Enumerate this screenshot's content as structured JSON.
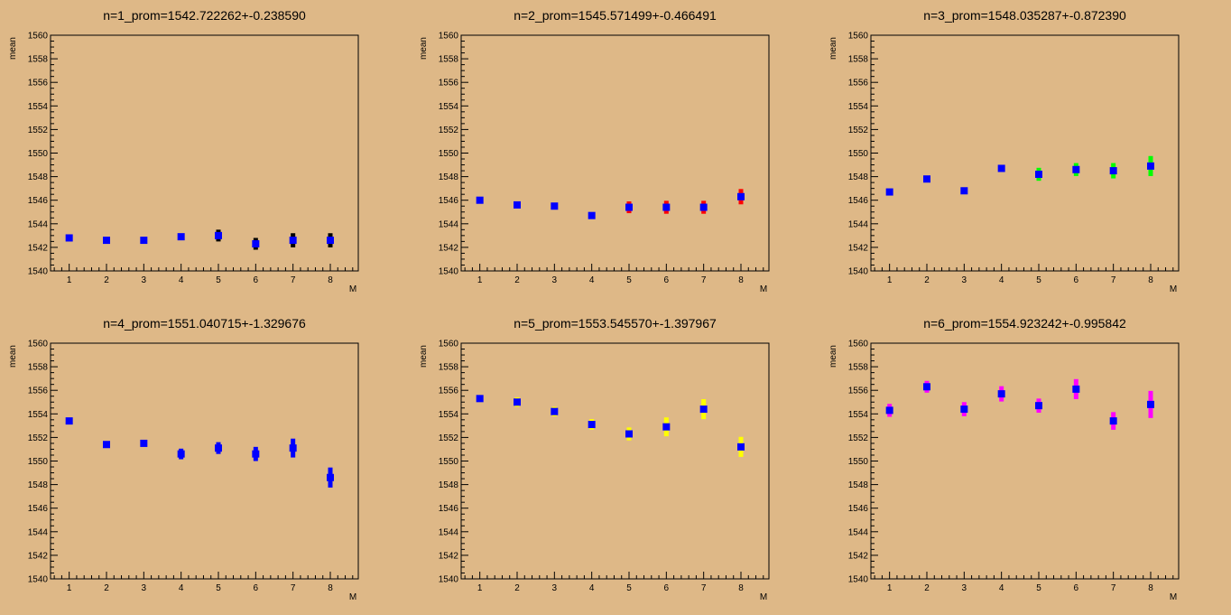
{
  "chart_data": [
    {
      "type": "scatter",
      "title": "n=1_prom=1542.722262+-0.238590",
      "xlabel": "M",
      "ylabel": "mean",
      "xlim": [
        0.5,
        8.75
      ],
      "ylim": [
        1540,
        1560
      ],
      "grid": false,
      "series": [
        {
          "color": "#000000",
          "x": [
            5,
            6,
            7,
            8
          ],
          "y": [
            1543.0,
            1542.3,
            1542.6,
            1542.6
          ],
          "err": [
            0.5,
            0.5,
            0.6,
            0.6
          ]
        },
        {
          "color": "#0000ff",
          "x": [
            1,
            2,
            3,
            4,
            5,
            6,
            7,
            8
          ],
          "y": [
            1542.8,
            1542.6,
            1542.6,
            1542.9,
            1543.0,
            1542.3,
            1542.6,
            1542.6
          ],
          "err": [
            0,
            0,
            0,
            0,
            0,
            0,
            0,
            0
          ]
        }
      ]
    },
    {
      "type": "scatter",
      "title": "n=2_prom=1545.571499+-0.466491",
      "xlabel": "M",
      "ylabel": "mean",
      "xlim": [
        0.5,
        8.75
      ],
      "ylim": [
        1540,
        1560
      ],
      "grid": false,
      "series": [
        {
          "color": "#ff0000",
          "x": [
            5,
            6,
            7,
            8
          ],
          "y": [
            1545.4,
            1545.4,
            1545.4,
            1546.3
          ],
          "err": [
            0.5,
            0.55,
            0.55,
            0.65
          ]
        },
        {
          "color": "#0000ff",
          "x": [
            1,
            2,
            3,
            4,
            5,
            6,
            7,
            8
          ],
          "y": [
            1546.0,
            1545.6,
            1545.5,
            1544.7,
            1545.4,
            1545.4,
            1545.4,
            1546.3
          ],
          "err": [
            0,
            0,
            0,
            0,
            0,
            0,
            0,
            0
          ]
        }
      ]
    },
    {
      "type": "scatter",
      "title": "n=3_prom=1548.035287+-0.872390",
      "xlabel": "M",
      "ylabel": "mean",
      "xlim": [
        0.5,
        8.75
      ],
      "ylim": [
        1540,
        1560
      ],
      "grid": false,
      "series": [
        {
          "color": "#00ff00",
          "x": [
            5,
            6,
            7,
            8
          ],
          "y": [
            1548.2,
            1548.6,
            1548.5,
            1548.9
          ],
          "err": [
            0.55,
            0.55,
            0.65,
            0.85
          ]
        },
        {
          "color": "#0000ff",
          "x": [
            1,
            2,
            3,
            4,
            5,
            6,
            7,
            8
          ],
          "y": [
            1546.7,
            1547.8,
            1546.8,
            1548.7,
            1548.2,
            1548.6,
            1548.5,
            1548.9
          ],
          "err": [
            0,
            0,
            0,
            0,
            0,
            0,
            0,
            0
          ]
        }
      ]
    },
    {
      "type": "scatter",
      "title": "n=4_prom=1551.040715+-1.329676",
      "xlabel": "M",
      "ylabel": "mean",
      "xlim": [
        0.5,
        8.75
      ],
      "ylim": [
        1540,
        1560
      ],
      "grid": false,
      "series": [
        {
          "color": "#0000ff",
          "x": [
            1,
            2,
            3,
            4,
            5,
            6,
            7,
            8
          ],
          "y": [
            1553.4,
            1551.4,
            1551.5,
            1550.6,
            1551.1,
            1550.6,
            1551.1,
            1548.6
          ],
          "err": [
            0,
            0,
            0,
            0.45,
            0.5,
            0.6,
            0.8,
            0.85
          ]
        }
      ]
    },
    {
      "type": "scatter",
      "title": "n=5_prom=1553.545570+-1.397967",
      "xlabel": "M",
      "ylabel": "mean",
      "xlim": [
        0.5,
        8.75
      ],
      "ylim": [
        1540,
        1560
      ],
      "grid": false,
      "series": [
        {
          "color": "#ffff00",
          "x": [
            2,
            3,
            4,
            5,
            6,
            7,
            8
          ],
          "y": [
            1555.0,
            1554.2,
            1553.1,
            1552.3,
            1552.9,
            1554.4,
            1551.2
          ],
          "err": [
            0.4,
            0.4,
            0.45,
            0.55,
            0.8,
            0.85,
            0.85
          ]
        },
        {
          "color": "#0000ff",
          "x": [
            1,
            2,
            3,
            4,
            5,
            6,
            7,
            8
          ],
          "y": [
            1555.3,
            1555.0,
            1554.2,
            1553.1,
            1552.3,
            1552.9,
            1554.4,
            1551.2
          ],
          "err": [
            0,
            0,
            0,
            0,
            0,
            0,
            0,
            0
          ]
        }
      ]
    },
    {
      "type": "scatter",
      "title": "n=6_prom=1554.923242+-0.995842",
      "xlabel": "M",
      "ylabel": "mean",
      "xlim": [
        0.5,
        8.75
      ],
      "ylim": [
        1540,
        1560
      ],
      "grid": false,
      "series": [
        {
          "color": "#ff00ff",
          "x": [
            1,
            2,
            3,
            4,
            5,
            6,
            7,
            8
          ],
          "y": [
            1554.3,
            1556.3,
            1554.4,
            1555.7,
            1554.7,
            1556.1,
            1553.4,
            1554.8
          ],
          "err": [
            0.55,
            0.5,
            0.6,
            0.65,
            0.6,
            0.85,
            0.75,
            1.15
          ]
        },
        {
          "color": "#0000ff",
          "x": [
            1,
            2,
            3,
            4,
            5,
            6,
            7,
            8
          ],
          "y": [
            1554.3,
            1556.3,
            1554.4,
            1555.7,
            1554.7,
            1556.1,
            1553.4,
            1554.8
          ],
          "err": [
            0,
            0,
            0,
            0,
            0,
            0,
            0,
            0
          ]
        }
      ]
    }
  ]
}
